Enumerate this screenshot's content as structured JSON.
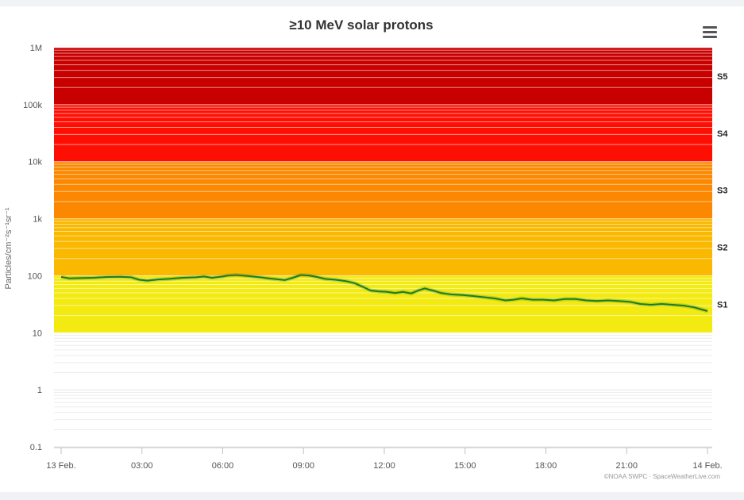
{
  "chart_data": {
    "type": "line",
    "title": "≥10 MeV solar protons",
    "ylabel": "Particles/cm⁻²s⁻¹sr⁻¹",
    "xlabel": "",
    "yscale": "log",
    "ylim": [
      0.1,
      1000000
    ],
    "y_ticks": [
      {
        "value": 1000000,
        "label": "1M"
      },
      {
        "value": 100000,
        "label": "100k"
      },
      {
        "value": 10000,
        "label": "10k"
      },
      {
        "value": 1000,
        "label": "1k"
      },
      {
        "value": 100,
        "label": "100"
      },
      {
        "value": 10,
        "label": "10"
      },
      {
        "value": 1,
        "label": "1"
      },
      {
        "value": 0.1,
        "label": "0.1"
      }
    ],
    "x_ticks": [
      {
        "hour": 0,
        "label": "13 Feb."
      },
      {
        "hour": 3,
        "label": "03:00"
      },
      {
        "hour": 6,
        "label": "06:00"
      },
      {
        "hour": 9,
        "label": "09:00"
      },
      {
        "hour": 12,
        "label": "12:00"
      },
      {
        "hour": 15,
        "label": "15:00"
      },
      {
        "hour": 18,
        "label": "18:00"
      },
      {
        "hour": 21,
        "label": "21:00"
      },
      {
        "hour": 24,
        "label": "14 Feb."
      }
    ],
    "storm_levels": [
      {
        "label": "S1",
        "from": 10,
        "to": 100,
        "color": "#f3ea12"
      },
      {
        "label": "S2",
        "from": 100,
        "to": 1000,
        "color": "#fab800"
      },
      {
        "label": "S3",
        "from": 1000,
        "to": 10000,
        "color": "#fb8800"
      },
      {
        "label": "S4",
        "from": 10000,
        "to": 100000,
        "color": "#fe0f04"
      },
      {
        "label": "S5",
        "from": 100000,
        "to": 1000000,
        "color": "#c80000"
      }
    ],
    "series": [
      {
        "color": "#1e7b1e",
        "highlight_color": "#f7a830",
        "points": [
          [
            0.0,
            95
          ],
          [
            0.3,
            90
          ],
          [
            0.7,
            91
          ],
          [
            1.2,
            92
          ],
          [
            1.7,
            95
          ],
          [
            2.2,
            96
          ],
          [
            2.6,
            94
          ],
          [
            2.9,
            85
          ],
          [
            3.2,
            82
          ],
          [
            3.6,
            86
          ],
          [
            4.0,
            88
          ],
          [
            4.5,
            92
          ],
          [
            5.0,
            94
          ],
          [
            5.3,
            97
          ],
          [
            5.6,
            92
          ],
          [
            6.0,
            97
          ],
          [
            6.2,
            101
          ],
          [
            6.5,
            103
          ],
          [
            6.8,
            100
          ],
          [
            7.1,
            97
          ],
          [
            7.4,
            94
          ],
          [
            7.7,
            90
          ],
          [
            8.0,
            87
          ],
          [
            8.3,
            84
          ],
          [
            8.6,
            92
          ],
          [
            8.9,
            103
          ],
          [
            9.2,
            101
          ],
          [
            9.5,
            95
          ],
          [
            9.8,
            88
          ],
          [
            10.2,
            85
          ],
          [
            10.6,
            80
          ],
          [
            10.9,
            74
          ],
          [
            11.2,
            64
          ],
          [
            11.5,
            55
          ],
          [
            11.8,
            53
          ],
          [
            12.1,
            52
          ],
          [
            12.4,
            50
          ],
          [
            12.7,
            52
          ],
          [
            13.0,
            49
          ],
          [
            13.3,
            56
          ],
          [
            13.5,
            60
          ],
          [
            13.8,
            55
          ],
          [
            14.1,
            50
          ],
          [
            14.5,
            47
          ],
          [
            14.9,
            46
          ],
          [
            15.3,
            44
          ],
          [
            15.7,
            42
          ],
          [
            16.1,
            40
          ],
          [
            16.5,
            37
          ],
          [
            16.8,
            38
          ],
          [
            17.1,
            40
          ],
          [
            17.5,
            38
          ],
          [
            17.9,
            38
          ],
          [
            18.3,
            37
          ],
          [
            18.7,
            39
          ],
          [
            19.1,
            39
          ],
          [
            19.5,
            37
          ],
          [
            19.9,
            36
          ],
          [
            20.3,
            37
          ],
          [
            20.7,
            36
          ],
          [
            21.1,
            35
          ],
          [
            21.5,
            32
          ],
          [
            21.9,
            31
          ],
          [
            22.3,
            32
          ],
          [
            22.7,
            31
          ],
          [
            23.1,
            30
          ],
          [
            23.5,
            28
          ],
          [
            24.0,
            24
          ]
        ]
      }
    ],
    "credit": "©NOAA SWPC · SpaceWeatherLive.com"
  }
}
